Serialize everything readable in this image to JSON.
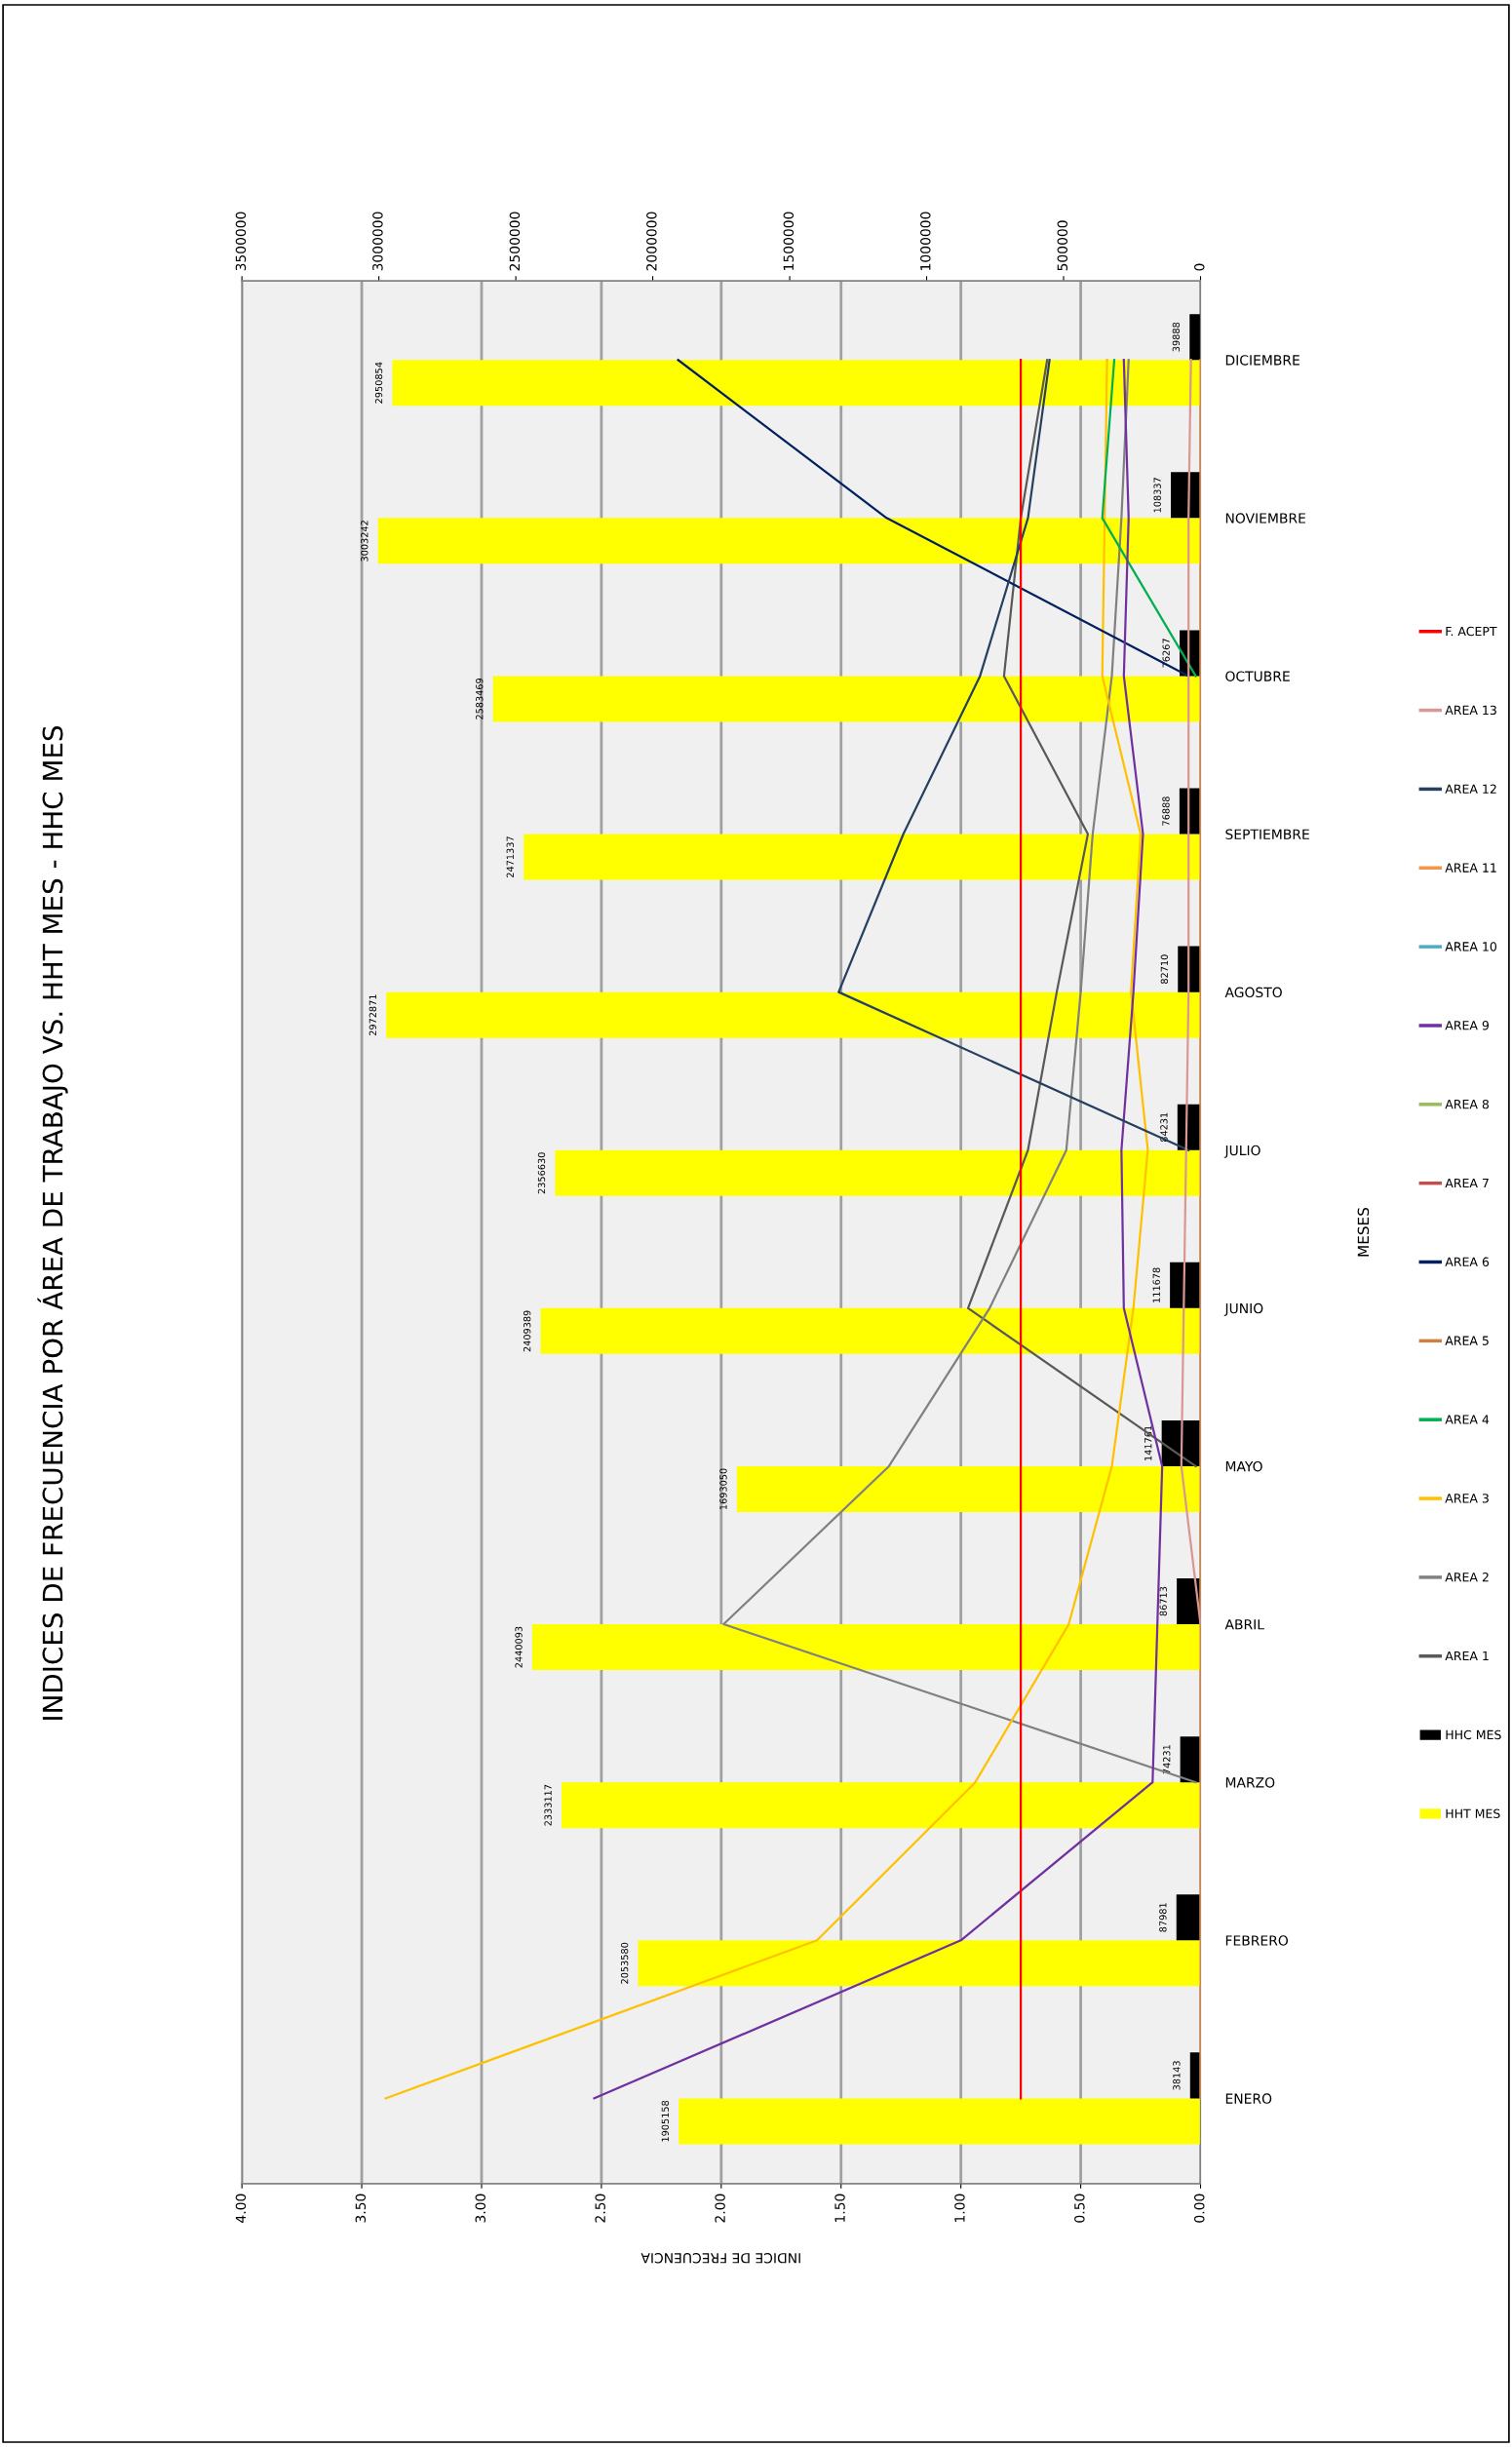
{
  "chart_data": {
    "type": "bar",
    "orientation": "horizontal",
    "title": "INDICES DE FRECUENCIA POR ÁREA DE TRABAJO VS. HHT MES - HHC MES",
    "xlabel": "INDICE DE FRECUENCIA",
    "ylabel": "MESES",
    "categories": [
      "DICIEMBRE",
      "NOVIEMBRE",
      "OCTUBRE",
      "SEPTIEMBRE",
      "AGOSTO",
      "JULIO",
      "JUNIO",
      "MAYO",
      "ABRIL",
      "MARZO",
      "FEBRERO",
      "ENERO"
    ],
    "xlim": [
      4,
      0
    ],
    "xticks": [
      {
        "value": 4,
        "label": "4.00"
      },
      {
        "value": 3.5,
        "label": "3.50"
      },
      {
        "value": 3,
        "label": "3.00"
      },
      {
        "value": 2.5,
        "label": "2.50"
      },
      {
        "value": 2,
        "label": "2.00"
      },
      {
        "value": 1.5,
        "label": "1.50"
      },
      {
        "value": 1,
        "label": "1.00"
      },
      {
        "value": 0.5,
        "label": "0.50"
      },
      {
        "value": 0,
        "label": "0.00"
      }
    ],
    "x2lim": [
      3500000,
      0
    ],
    "x2ticks": [
      3500000,
      3000000,
      2500000,
      2000000,
      1500000,
      1000000,
      500000,
      0
    ],
    "grid": "x",
    "legend": "right",
    "series": [
      {
        "name": "HHT MES",
        "axis": "x2",
        "color": "#ffff00",
        "values": [
          2950854,
          3003242,
          2583469,
          2471337,
          2972871,
          2356630,
          2409389,
          1693050,
          2440093,
          2333117,
          2053580,
          1905158
        ],
        "value_labels": [
          "2950854",
          "3003242",
          "2583469",
          "2471337",
          "2972871",
          "2356630",
          "2409389",
          "1693050",
          "2440093",
          "2333117",
          "2053580",
          "1905158"
        ]
      },
      {
        "name": "HHC MES",
        "axis": "x2",
        "color": "#000000",
        "values": [
          39888,
          108337,
          76267,
          76888,
          82710,
          84231,
          111678,
          141761,
          86713,
          74231,
          87981,
          38143
        ],
        "value_labels": [
          "39888",
          "108337",
          "76267",
          "76888",
          "82710",
          "84231",
          "111678",
          "141761",
          "86713",
          "74231",
          "87981",
          "38143"
        ]
      },
      {
        "name": "AREA 1",
        "type": "line",
        "color": "#595959",
        "values": [
          0.64,
          0.75,
          0.82,
          0.47,
          0.6,
          0.72,
          0.97,
          0.02,
          null,
          null,
          null,
          null
        ]
      },
      {
        "name": "AREA 2",
        "type": "line",
        "color": "#808080",
        "values": [
          0.3,
          0.33,
          0.37,
          0.45,
          0.5,
          0.56,
          0.88,
          1.3,
          1.99,
          0.02,
          null,
          null
        ]
      },
      {
        "name": "AREA 3",
        "type": "line",
        "color": "#ffc000",
        "values": [
          0.39,
          0.4,
          0.41,
          0.25,
          0.29,
          0.22,
          0.28,
          0.37,
          0.55,
          0.94,
          1.6,
          3.4
        ]
      },
      {
        "name": "AREA 4",
        "type": "line",
        "color": "#00b050",
        "values": [
          0.36,
          0.41,
          0.02,
          null,
          null,
          null,
          null,
          null,
          null,
          null,
          null,
          null
        ]
      },
      {
        "name": "AREA 5",
        "type": "line",
        "color": "#d0803c",
        "values": [
          null,
          null,
          null,
          null,
          null,
          null,
          null,
          null,
          null,
          null,
          null,
          null
        ]
      },
      {
        "name": "AREA 6",
        "type": "line",
        "color": "#002060",
        "values": [
          2.18,
          1.31,
          0.05,
          null,
          null,
          null,
          null,
          null,
          null,
          null,
          null,
          null
        ]
      },
      {
        "name": "AREA 7",
        "type": "line",
        "color": "#c0504d",
        "values": [
          null,
          null,
          null,
          null,
          null,
          null,
          null,
          null,
          null,
          null,
          null,
          null
        ]
      },
      {
        "name": "AREA 8",
        "type": "line",
        "color": "#9bbb59",
        "values": [
          null,
          null,
          null,
          null,
          null,
          null,
          null,
          null,
          null,
          null,
          null,
          null
        ]
      },
      {
        "name": "AREA 9",
        "type": "line",
        "color": "#7030a0",
        "values": [
          0.32,
          0.3,
          0.32,
          0.24,
          0.28,
          0.33,
          0.32,
          0.16,
          0.18,
          0.2,
          1.0,
          2.53
        ]
      },
      {
        "name": "AREA 10",
        "type": "line",
        "color": "#4bacc6",
        "values": [
          null,
          null,
          null,
          null,
          null,
          null,
          null,
          null,
          null,
          null,
          null,
          null
        ]
      },
      {
        "name": "AREA 11",
        "type": "line",
        "color": "#f79646",
        "values": [
          0,
          0,
          0,
          0,
          0,
          0,
          0,
          0,
          0,
          0,
          0,
          0
        ]
      },
      {
        "name": "AREA 12",
        "type": "line",
        "color": "#254061",
        "values": [
          0.63,
          0.72,
          0.92,
          1.24,
          1.51,
          0.05,
          null,
          null,
          null,
          null,
          null,
          null
        ]
      },
      {
        "name": "AREA 13",
        "type": "line",
        "color": "#d99694",
        "values": [
          0.04,
          0.05,
          0.05,
          0.05,
          0.05,
          0.06,
          0.07,
          0.08,
          0.0,
          null,
          null,
          null
        ]
      },
      {
        "name": "F. ACEPT",
        "type": "line",
        "color": "#ff0000",
        "values": [
          0.75,
          0.75,
          0.75,
          0.75,
          0.75,
          0.75,
          0.75,
          0.75,
          0.75,
          0.75,
          0.75,
          0.75
        ]
      }
    ]
  }
}
